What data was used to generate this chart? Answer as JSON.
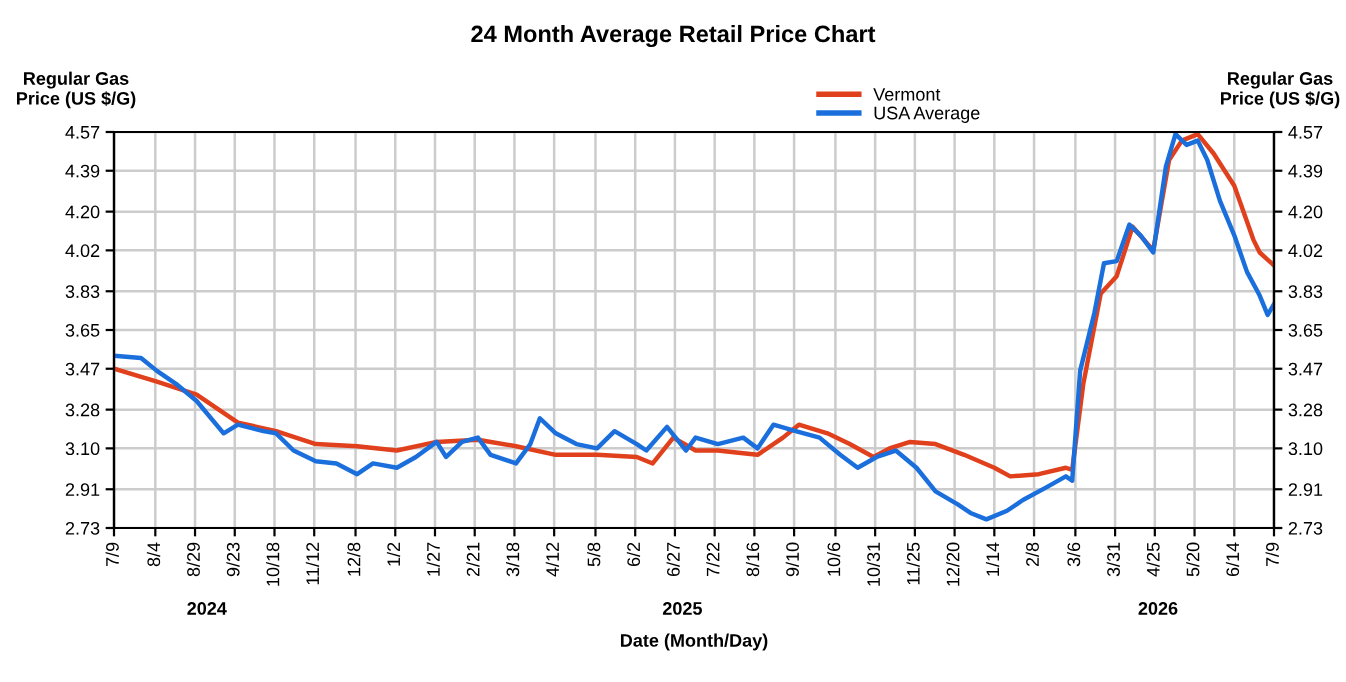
{
  "chart_data": {
    "type": "line",
    "title": "24 Month Average Retail Price Chart",
    "xlabel": "Date (Month/Day)",
    "ylabel": "Regular Gas\nPrice (US $/G)",
    "y2label": "Regular Gas\nPrice (US $/G)",
    "annotations": [
      "2024",
      "2025",
      "2026"
    ],
    "xlim": [
      "2024-07-09",
      "2026-07-09"
    ],
    "xticks": [
      {
        "value": "2024-07-09",
        "label": "7/9"
      },
      {
        "value": "2024-08-04",
        "label": "8/4"
      },
      {
        "value": "2024-08-29",
        "label": "8/29"
      },
      {
        "value": "2024-09-23",
        "label": "9/23"
      },
      {
        "value": "2024-10-18",
        "label": "10/18"
      },
      {
        "value": "2024-11-12",
        "label": "11/12"
      },
      {
        "value": "2024-12-08",
        "label": "12/8"
      },
      {
        "value": "2025-01-02",
        "label": "1/2"
      },
      {
        "value": "2025-01-27",
        "label": "1/27"
      },
      {
        "value": "2025-02-21",
        "label": "2/21"
      },
      {
        "value": "2025-03-18",
        "label": "3/18"
      },
      {
        "value": "2025-04-12",
        "label": "4/12"
      },
      {
        "value": "2025-05-08",
        "label": "5/8"
      },
      {
        "value": "2025-06-02",
        "label": "6/2"
      },
      {
        "value": "2025-06-27",
        "label": "6/27"
      },
      {
        "value": "2025-07-22",
        "label": "7/22"
      },
      {
        "value": "2025-08-16",
        "label": "8/16"
      },
      {
        "value": "2025-09-10",
        "label": "9/10"
      },
      {
        "value": "2025-10-06",
        "label": "10/6"
      },
      {
        "value": "2025-10-31",
        "label": "10/31"
      },
      {
        "value": "2025-11-25",
        "label": "11/25"
      },
      {
        "value": "2025-12-20",
        "label": "12/20"
      },
      {
        "value": "2026-01-14",
        "label": "1/14"
      },
      {
        "value": "2026-02-08",
        "label": "2/8"
      },
      {
        "value": "2026-03-06",
        "label": "3/6"
      },
      {
        "value": "2026-03-31",
        "label": "3/31"
      },
      {
        "value": "2026-04-25",
        "label": "4/25"
      },
      {
        "value": "2026-05-20",
        "label": "5/20"
      },
      {
        "value": "2026-06-14",
        "label": "6/14"
      },
      {
        "value": "2026-07-09",
        "label": "7/9"
      }
    ],
    "ylim": [
      2.73,
      4.57
    ],
    "yticks": [
      2.73,
      2.91,
      {
        "value": 3.1,
        "label": "3.10"
      },
      3.28,
      3.47,
      3.65,
      3.83,
      4.02,
      {
        "value": 4.2,
        "label": "4.20"
      },
      4.39,
      4.57
    ],
    "y2lim": [
      2.73,
      4.57
    ],
    "y2ticks": [
      2.73,
      2.91,
      {
        "value": 3.1,
        "label": "3.10"
      },
      3.28,
      3.47,
      3.65,
      3.83,
      4.02,
      {
        "value": 4.2,
        "label": "4.20"
      },
      4.39,
      4.57
    ],
    "grid": true,
    "legend": "top right",
    "marker": "none",
    "line_style": "solid",
    "series": [
      {
        "name": "Vermont",
        "color": "#e0401c",
        "x": [
          "2024-07-09",
          "2024-08-05",
          "2024-08-30",
          "2024-09-25",
          "2024-10-19",
          "2024-11-13",
          "2024-12-09",
          "2025-01-03",
          "2025-01-28",
          "2025-02-23",
          "2025-03-19",
          "2025-04-13",
          "2025-05-09",
          "2025-06-03",
          "2025-06-13",
          "2025-06-26",
          "2025-07-10",
          "2025-07-24",
          "2025-08-06",
          "2025-08-18",
          "2025-09-03",
          "2025-09-13",
          "2025-10-01",
          "2025-10-15",
          "2025-10-30",
          "2025-11-09",
          "2025-11-22",
          "2025-12-08",
          "2025-12-26",
          "2026-01-14",
          "2026-01-24",
          "2026-02-11",
          "2026-02-28",
          "2026-03-04",
          "2026-03-11",
          "2026-03-22",
          "2026-04-01",
          "2026-04-11",
          "2026-04-24",
          "2026-05-04",
          "2026-05-12",
          "2026-05-22",
          "2026-06-01",
          "2026-06-14",
          "2026-06-26",
          "2026-06-30",
          "2026-07-09"
        ],
        "values": [
          3.47,
          3.41,
          3.35,
          3.22,
          3.18,
          3.12,
          3.11,
          3.09,
          3.13,
          3.14,
          3.11,
          3.07,
          3.07,
          3.06,
          3.03,
          3.15,
          3.09,
          3.09,
          3.08,
          3.07,
          3.15,
          3.21,
          3.17,
          3.12,
          3.06,
          3.1,
          3.13,
          3.12,
          3.07,
          3.01,
          2.97,
          2.98,
          3.01,
          3.0,
          3.4,
          3.82,
          3.9,
          4.13,
          4.02,
          4.44,
          4.53,
          4.56,
          4.47,
          4.32,
          4.07,
          4.01,
          3.95
        ]
      },
      {
        "name": "USA Average",
        "color": "#1a6fdc",
        "x": [
          "2024-07-09",
          "2024-07-26",
          "2024-08-05",
          "2024-08-17",
          "2024-08-30",
          "2024-09-16",
          "2024-09-25",
          "2024-10-11",
          "2024-10-19",
          "2024-10-30",
          "2024-11-13",
          "2024-11-26",
          "2024-12-09",
          "2024-12-19",
          "2025-01-03",
          "2025-01-15",
          "2025-01-28",
          "2025-02-03",
          "2025-02-13",
          "2025-02-23",
          "2025-03-03",
          "2025-03-19",
          "2025-03-28",
          "2025-04-03",
          "2025-04-13",
          "2025-04-26",
          "2025-05-09",
          "2025-05-20",
          "2025-06-03",
          "2025-06-09",
          "2025-06-22",
          "2025-07-04",
          "2025-07-10",
          "2025-07-24",
          "2025-08-09",
          "2025-08-18",
          "2025-08-28",
          "2025-09-11",
          "2025-09-26",
          "2025-10-09",
          "2025-10-20",
          "2025-11-01",
          "2025-11-13",
          "2025-11-26",
          "2025-12-08",
          "2025-12-22",
          "2025-12-30",
          "2026-01-09",
          "2026-01-22",
          "2026-02-01",
          "2026-02-16",
          "2026-02-28",
          "2026-03-04",
          "2026-03-09",
          "2026-03-18",
          "2026-03-24",
          "2026-04-01",
          "2026-04-09",
          "2026-04-16",
          "2026-04-24",
          "2026-05-02",
          "2026-05-08",
          "2026-05-15",
          "2026-05-22",
          "2026-05-28",
          "2026-06-05",
          "2026-06-14",
          "2026-06-22",
          "2026-06-30",
          "2026-07-05",
          "2026-07-09"
        ],
        "values": [
          3.53,
          3.52,
          3.46,
          3.4,
          3.32,
          3.17,
          3.21,
          3.18,
          3.17,
          3.09,
          3.04,
          3.03,
          2.98,
          3.03,
          3.01,
          3.06,
          3.13,
          3.06,
          3.13,
          3.15,
          3.07,
          3.03,
          3.12,
          3.24,
          3.17,
          3.12,
          3.1,
          3.18,
          3.12,
          3.09,
          3.2,
          3.09,
          3.15,
          3.12,
          3.15,
          3.1,
          3.21,
          3.18,
          3.15,
          3.07,
          3.01,
          3.06,
          3.09,
          3.01,
          2.9,
          2.84,
          2.8,
          2.77,
          2.81,
          2.86,
          2.92,
          2.97,
          2.95,
          3.46,
          3.73,
          3.96,
          3.97,
          4.14,
          4.09,
          4.01,
          4.41,
          4.56,
          4.51,
          4.53,
          4.44,
          4.25,
          4.09,
          3.92,
          3.81,
          3.72,
          3.77
        ]
      }
    ]
  }
}
